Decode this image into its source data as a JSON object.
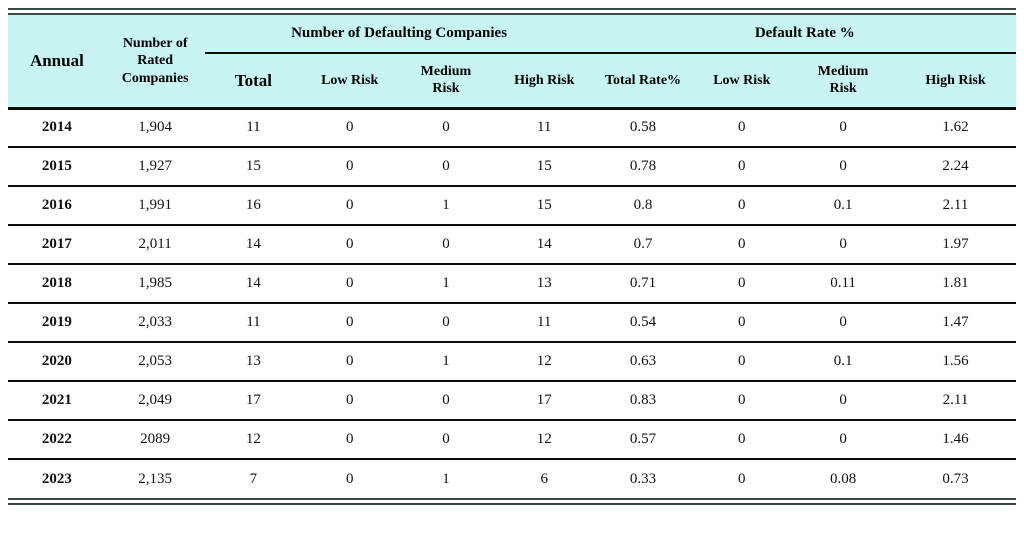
{
  "colors": {
    "header_bg": "#c9f4f4",
    "outer_border": "#3a4646",
    "line": "#0d0d0d"
  },
  "header": {
    "annual": "Annual",
    "rated_companies": "Number of\nRated\nCompanies",
    "group_defaulting": "Number of Defaulting Companies",
    "group_default_rate": "Default Rate %",
    "sub_defaulting": [
      "Total",
      "Low Risk",
      "Medium\nRisk",
      "High Risk"
    ],
    "sub_rate": [
      "Total Rate%",
      "Low Risk",
      "Medium\nRisk",
      "High Risk"
    ]
  },
  "rows": [
    [
      "2014",
      "1,904",
      "11",
      "0",
      "0",
      "11",
      "0.58",
      "0",
      "0",
      "1.62"
    ],
    [
      "2015",
      "1,927",
      "15",
      "0",
      "0",
      "15",
      "0.78",
      "0",
      "0",
      "2.24"
    ],
    [
      "2016",
      "1,991",
      "16",
      "0",
      "1",
      "15",
      "0.8",
      "0",
      "0.1",
      "2.11"
    ],
    [
      "2017",
      "2,011",
      "14",
      "0",
      "0",
      "14",
      "0.7",
      "0",
      "0",
      "1.97"
    ],
    [
      "2018",
      "1,985",
      "14",
      "0",
      "1",
      "13",
      "0.71",
      "0",
      "0.11",
      "1.81"
    ],
    [
      "2019",
      "2,033",
      "11",
      "0",
      "0",
      "11",
      "0.54",
      "0",
      "0",
      "1.47"
    ],
    [
      "2020",
      "2,053",
      "13",
      "0",
      "1",
      "12",
      "0.63",
      "0",
      "0.1",
      "1.56"
    ],
    [
      "2021",
      "2,049",
      "17",
      "0",
      "0",
      "17",
      "0.83",
      "0",
      "0",
      "2.11"
    ],
    [
      "2022",
      "2089",
      "12",
      "0",
      "0",
      "12",
      "0.57",
      "0",
      "0",
      "1.46"
    ],
    [
      "2023",
      "2,135",
      "7",
      "0",
      "1",
      "6",
      "0.33",
      "0",
      "0.08",
      "0.73"
    ]
  ]
}
